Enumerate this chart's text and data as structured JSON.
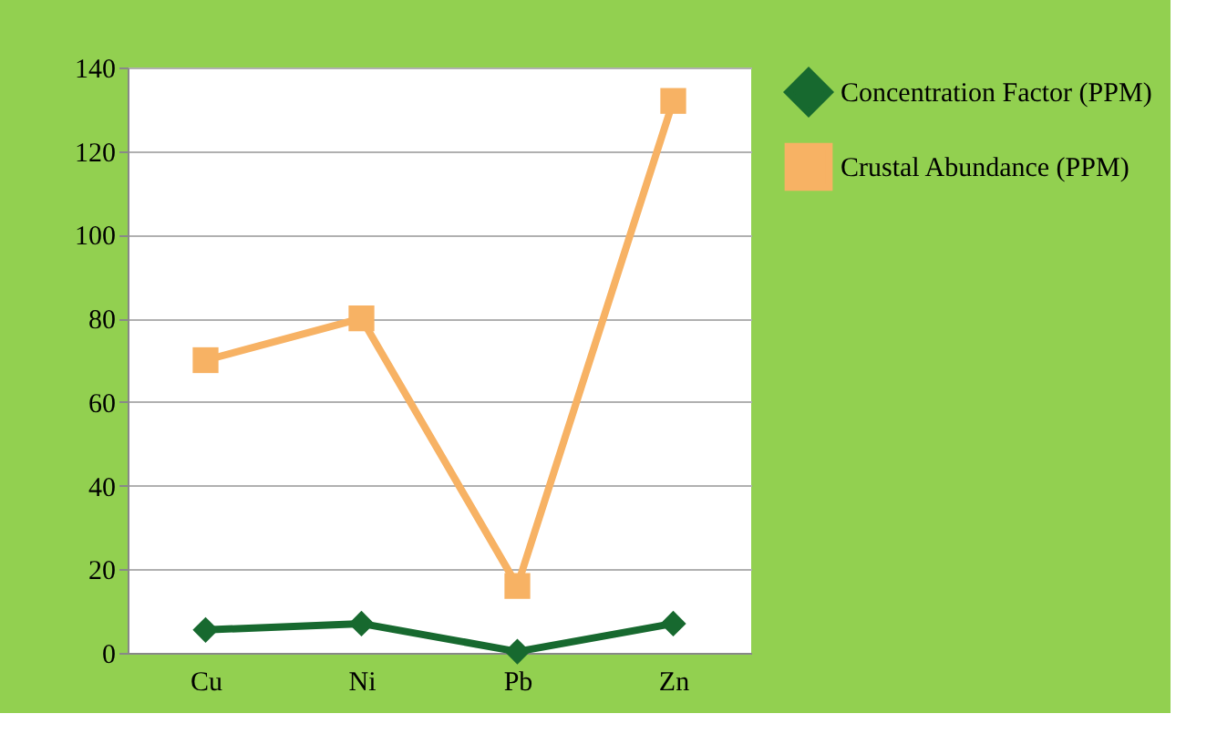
{
  "chart_data": {
    "type": "line",
    "categories": [
      "Cu",
      "Ni",
      "Pb",
      "Zn"
    ],
    "series": [
      {
        "name": "Concentration Factor (PPM)",
        "color": "#17692f",
        "marker": "diamond",
        "line_style": "solid",
        "values": [
          5.5,
          7,
          0.3,
          7
        ]
      },
      {
        "name": "Crustal Abundance (PPM)",
        "color": "#f7b264",
        "marker": "square",
        "line_style": "solid",
        "values": [
          70,
          80,
          16,
          132
        ]
      }
    ],
    "ylim": [
      0,
      140
    ],
    "yticks": [
      0,
      20,
      40,
      60,
      80,
      100,
      120,
      140
    ],
    "grid": "y",
    "legend": "right"
  }
}
